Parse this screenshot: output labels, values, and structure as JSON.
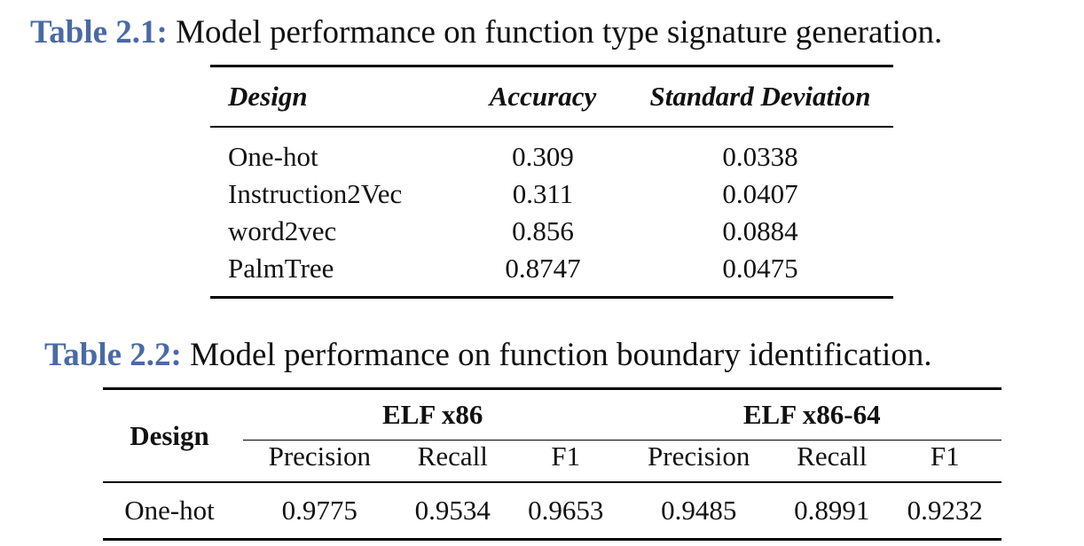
{
  "table1": {
    "label": "Table 2.1:",
    "caption": "Model performance on function type signature generation.",
    "headers": [
      "Design",
      "Accuracy",
      "Standard Deviation"
    ],
    "rows": [
      [
        "One-hot",
        "0.309",
        "0.0338"
      ],
      [
        "Instruction2Vec",
        "0.311",
        "0.0407"
      ],
      [
        "word2vec",
        "0.856",
        "0.0884"
      ],
      [
        "PalmTree",
        "0.8747",
        "0.0475"
      ]
    ]
  },
  "table2": {
    "label": "Table 2.2:",
    "caption": "Model performance on function boundary identification.",
    "design_header": "Design",
    "groups": [
      "ELF x86",
      "ELF x86-64"
    ],
    "subheaders": [
      "Precision",
      "Recall",
      "F1",
      "Precision",
      "Recall",
      "F1"
    ],
    "rows": [
      [
        "One-hot",
        "0.9775",
        "0.9534",
        "0.9653",
        "0.9485",
        "0.8991",
        "0.9232"
      ]
    ]
  }
}
